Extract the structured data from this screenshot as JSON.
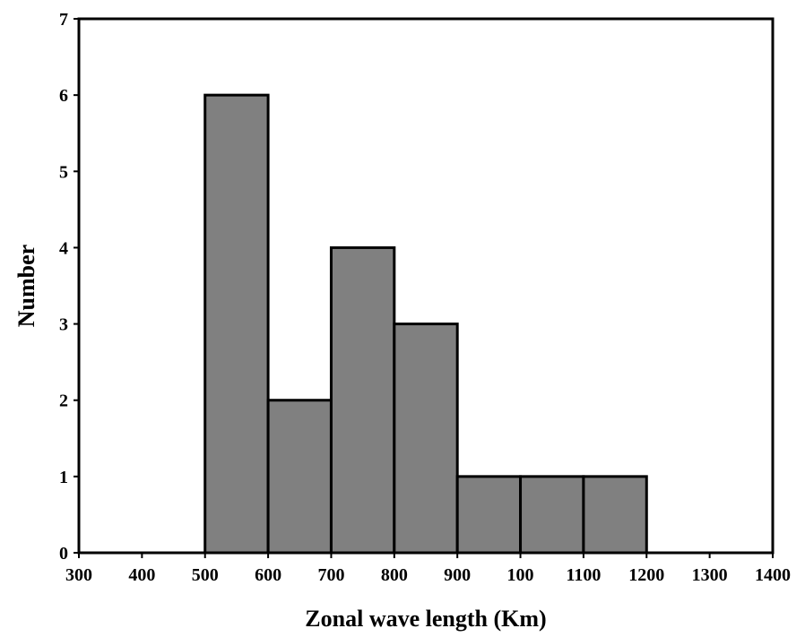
{
  "chart_data": {
    "type": "bar",
    "title": "",
    "xlabel": "Zonal wave length (Km)",
    "ylabel": "Number",
    "x_ticks": [
      "300",
      "400",
      "500",
      "600",
      "700",
      "800",
      "900",
      "100",
      "1100",
      "1200",
      "1300",
      "1400"
    ],
    "y_ticks": [
      "0",
      "1",
      "2",
      "3",
      "4",
      "5",
      "6",
      "7"
    ],
    "xlim": [
      300,
      1400
    ],
    "ylim": [
      0,
      7
    ],
    "bins": [
      {
        "from": 500,
        "to": 600,
        "value": 6
      },
      {
        "from": 600,
        "to": 700,
        "value": 2
      },
      {
        "from": 700,
        "to": 800,
        "value": 4
      },
      {
        "from": 800,
        "to": 900,
        "value": 3
      },
      {
        "from": 900,
        "to": 1000,
        "value": 1
      },
      {
        "from": 1000,
        "to": 1100,
        "value": 1
      },
      {
        "from": 1100,
        "to": 1200,
        "value": 1
      }
    ],
    "grid": false,
    "bar_color": "#808080",
    "edge_color": "#000000"
  }
}
